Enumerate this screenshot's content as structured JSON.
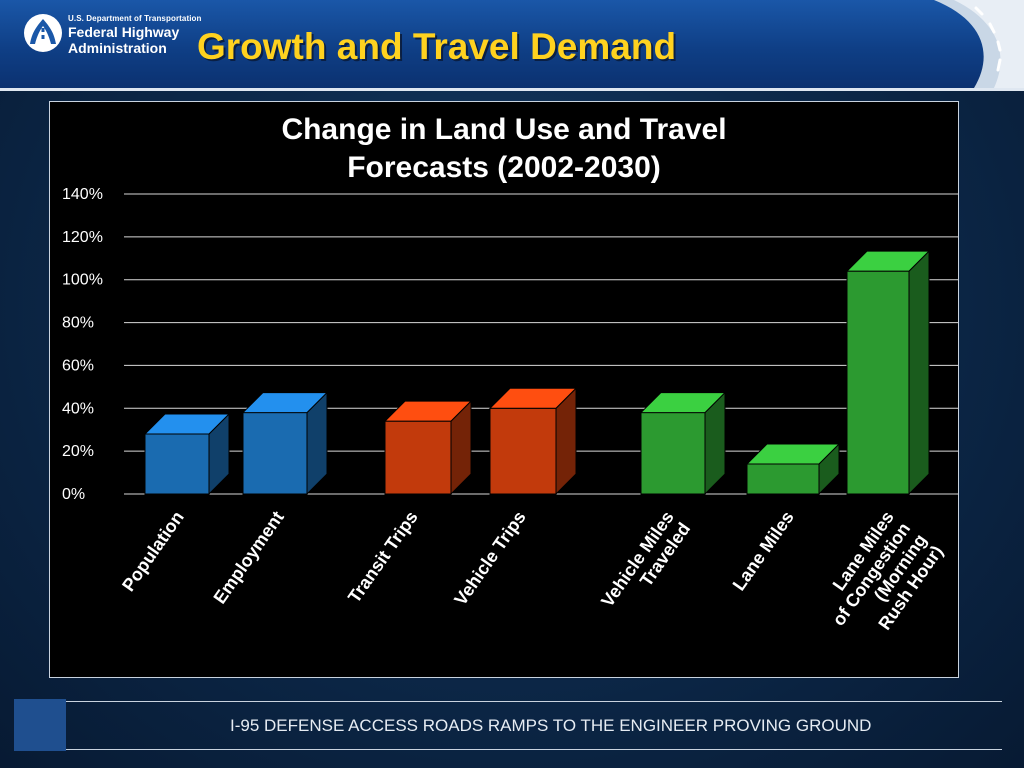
{
  "header": {
    "agency_line1": "U.S. Department of Transportation",
    "agency_line2": "Federal Highway",
    "agency_line3": "Administration",
    "slide_title": "Growth and Travel Demand"
  },
  "chart_data": {
    "type": "bar",
    "title": "Change in Land Use and Travel Forecasts (2002-2030)",
    "title_lines": [
      "Change in Land Use and Travel",
      "Forecasts (2002-2030)"
    ],
    "categories": [
      "Population",
      "Employment",
      "Transit Trips",
      "Vehicle Trips",
      "Vehicle Miles Traveled",
      "Lane Miles",
      "Lane Miles of Congestion (Morning Rush Hour)"
    ],
    "category_label_lines": [
      [
        "Population"
      ],
      [
        "Employment"
      ],
      [
        "Transit Trips"
      ],
      [
        "Vehicle Trips"
      ],
      [
        "Vehicle Miles",
        "Traveled"
      ],
      [
        "Lane Miles"
      ],
      [
        "Lane Miles",
        "of Congestion",
        "(Morning",
        "Rush Hour)"
      ]
    ],
    "values": [
      28,
      38,
      34,
      40,
      38,
      14,
      104
    ],
    "bar_colors": [
      "#1a6bb0",
      "#1a6bb0",
      "#c23a0c",
      "#c23a0c",
      "#2c9a30",
      "#2c9a30",
      "#2c9a30"
    ],
    "y_ticks": [
      "0%",
      "20%",
      "40%",
      "60%",
      "80%",
      "100%",
      "120%",
      "140%"
    ],
    "y_tick_values": [
      0,
      20,
      40,
      60,
      80,
      100,
      120,
      140
    ],
    "ylim": [
      0,
      140
    ],
    "xlabel": "",
    "ylabel": "",
    "grid": true
  },
  "footer": {
    "text": "I-95 DEFENSE ACCESS ROADS RAMPS TO THE ENGINEER PROVING GROUND"
  }
}
